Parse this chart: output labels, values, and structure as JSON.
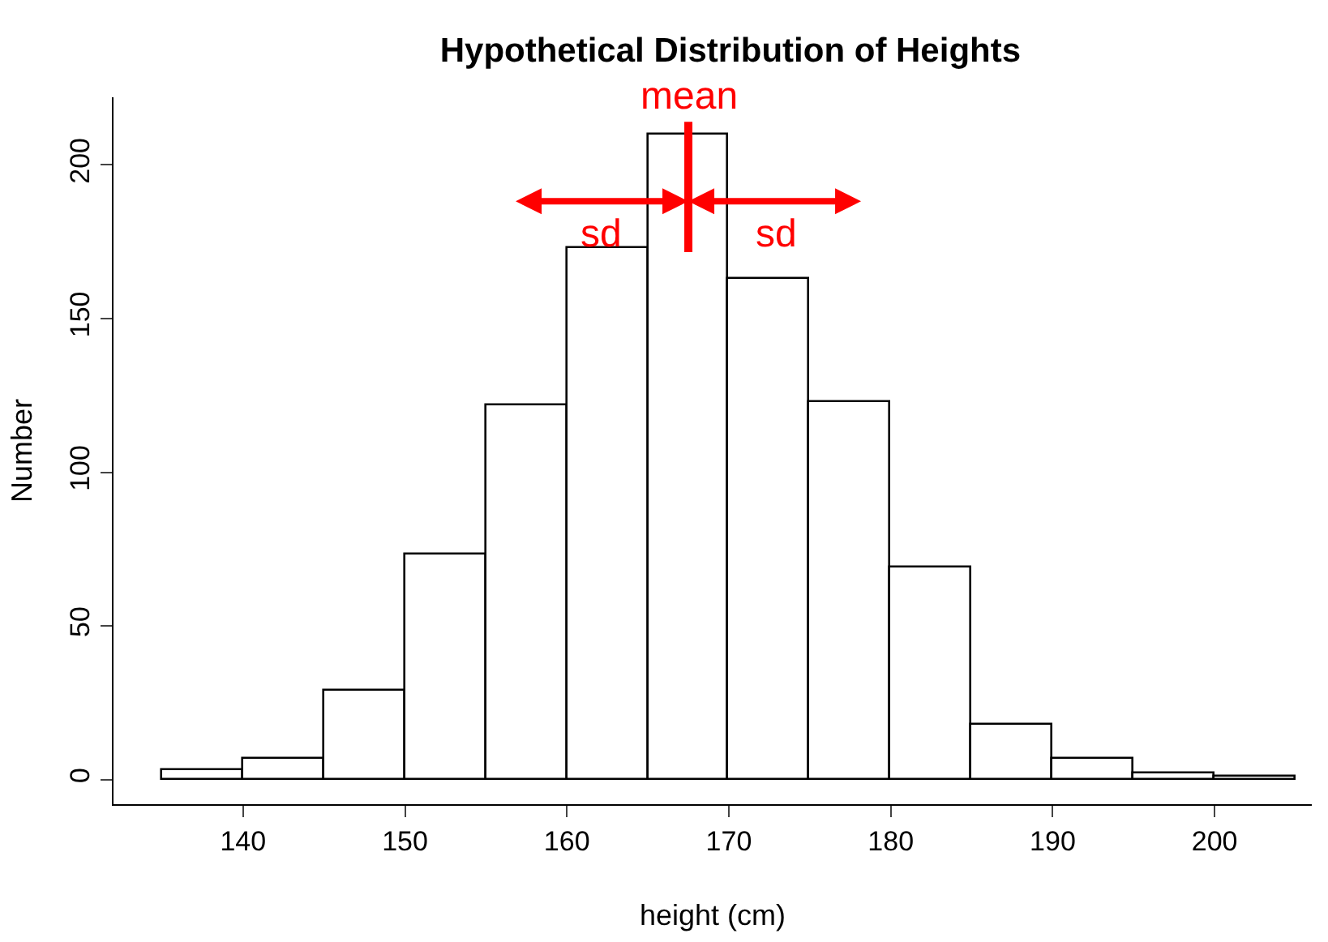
{
  "chart_data": {
    "type": "histogram",
    "title": "Hypothetical Distribution of Heights",
    "xlabel": "height (cm)",
    "ylabel": "Number",
    "bins": [
      135,
      140,
      145,
      150,
      155,
      160,
      165,
      170,
      175,
      180,
      185,
      190,
      195,
      200,
      205
    ],
    "values": [
      3,
      7,
      29,
      73,
      122,
      173,
      210,
      163,
      123,
      69,
      18,
      7,
      2,
      1
    ],
    "color": "#ffffff",
    "xlim": [
      132,
      206
    ],
    "xticks": [
      140,
      150,
      160,
      170,
      180,
      190,
      200
    ],
    "ylim": [
      -8,
      222
    ],
    "yticks": [
      0,
      50,
      100,
      150,
      200
    ],
    "ref_lines": [
      {
        "axis": "x",
        "value": 167.5,
        "label": "mean",
        "color": "#ff0000"
      }
    ],
    "annotations": [
      "sd",
      "sd"
    ]
  }
}
